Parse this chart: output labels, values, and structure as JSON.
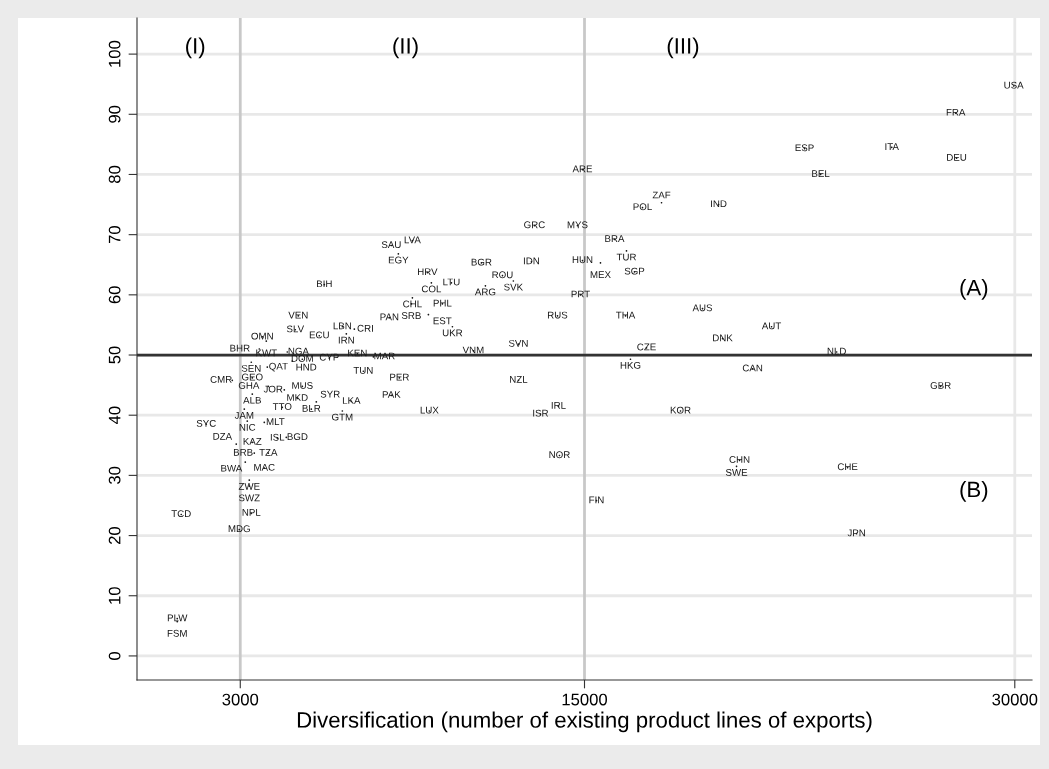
{
  "chart_data": {
    "type": "scatter",
    "xlabel": "Diversification (number of existing product lines of exports)",
    "xlim": [
      -600,
      30600
    ],
    "ylim": [
      -4,
      106
    ],
    "xticks": [
      3000,
      15000,
      30000
    ],
    "yticks": [
      0,
      10,
      20,
      30,
      40,
      50,
      60,
      70,
      80,
      90,
      100
    ],
    "grid": "y",
    "marker": "none",
    "ref_lines": [
      {
        "axis": "x",
        "value": 3000,
        "color": "#c8c8c8"
      },
      {
        "axis": "x",
        "value": 15000,
        "color": "#c8c8c8"
      },
      {
        "axis": "x",
        "value": 30000,
        "color": "#e8e8e8"
      },
      {
        "axis": "y",
        "value": 50,
        "color": "#333333"
      }
    ],
    "annotations": [
      "(I)",
      "(II)",
      "(III)",
      "(A)",
      "(B)"
    ],
    "series": [
      {
        "color": "#1a1a1a",
        "x": [
          29960,
          27940,
          22670,
          25710,
          27970,
          23230,
          23790,
          27416,
          24172,
          24486,
          14930,
          17022,
          17685,
          19673,
          13255,
          14755,
          16045,
          16464,
          14930,
          15557,
          16743,
          13150,
          12140,
          12520,
          11546,
          14860,
          14057,
          16430,
          19114,
          21520,
          19812,
          17162,
          16603,
          12697,
          20860,
          12697,
          13464,
          14092,
          18347,
          14127,
          20405,
          20300,
          15417,
          8267,
          9000,
          8511,
          5930,
          9523,
          9662,
          10360,
          11406,
          9000,
          8965,
          10046,
          9558,
          8197,
          10395,
          5023,
          4918,
          5755,
          6558,
          6697,
          6976,
          3767,
          3907,
          3663,
          4639,
          3384,
          3942,
          4814,
          5163,
          6104,
          7081,
          7639,
          7290,
          8546,
          8267,
          6872,
          6558,
          9592,
          11127,
          5163,
          4535,
          3977,
          3419,
          4465,
          5477,
          5651,
          4988,
          3419,
          2721,
          3140,
          1814,
          3244,
          3837,
          4290,
          4604,
          3977,
          3488,
          3419,
          2860,
          3837,
          3174,
          3314,
          3314,
          3384,
          2965,
          803,
          803,
          942
        ],
        "values": [
          94.7,
          90.2,
          84.3,
          84.5,
          82.7,
          80,
          50.5,
          44.8,
          31.3,
          20.3,
          80.8,
          74.5,
          75.3,
          75,
          71.5,
          71.5,
          69.2,
          67.3,
          65.7,
          65.3,
          63.8,
          65.5,
          63.2,
          62.3,
          61.5,
          60,
          56.5,
          56.5,
          57.7,
          54.7,
          52.7,
          51.2,
          49.3,
          51.8,
          47.7,
          45.8,
          40.2,
          41.5,
          40.7,
          33.3,
          32.5,
          31.5,
          25.8,
          68.2,
          69,
          66.8,
          61.7,
          63.7,
          62,
          62,
          65.3,
          59.5,
          58.5,
          58.5,
          56.7,
          56.2,
          54.7,
          56.5,
          54.2,
          53.2,
          54.7,
          53.5,
          54.3,
          53,
          52.3,
          51,
          50.5,
          48.8,
          48,
          49,
          49.3,
          49.5,
          50.2,
          49.7,
          47.3,
          46.2,
          43.3,
          42.3,
          40.7,
          40.7,
          50.7,
          44.8,
          44.2,
          44.8,
          43.5,
          41.3,
          41,
          42.2,
          42.8,
          46.2,
          45.8,
          41,
          38.5,
          39,
          38.8,
          36.2,
          36.3,
          33.7,
          33.7,
          35.5,
          35.2,
          31.2,
          32.2,
          29.2,
          28.2,
          23.7,
          21,
          6.2,
          5.7,
          23.5
        ],
        "value_labels": [
          "USA",
          "FRA",
          "ESP",
          "ITA",
          "DEU",
          "BEL",
          "NLD",
          "GBR",
          "CHE",
          "JPN",
          "ARE",
          "POL",
          "ZAF",
          "IND",
          "GRC",
          "MYS",
          "BRA",
          "TUR",
          "HUN",
          "MEX",
          "SGP",
          "IDN",
          "ROU",
          "SVK",
          "ARG",
          "PRT",
          "RUS",
          "THA",
          "AUS",
          "AUT",
          "DNK",
          "CZE",
          "HKG",
          "SVN",
          "CAN",
          "NZL",
          "ISR",
          "IRL",
          "KOR",
          "NOR",
          "CHN",
          "SWE",
          "FIN",
          "SAU",
          "LVA",
          "EGY",
          "BIH",
          "HRV",
          "COL",
          "LTU",
          "BGR",
          "CHL",
          "SRB",
          "PHL",
          "EST",
          "PAN",
          "UKR",
          "VEN",
          "SLV",
          "ECU",
          "LBN",
          "IRN",
          "CRI",
          "OMN",
          "KWT",
          "BHR",
          "NGA",
          "SEN",
          "QAT",
          "HND",
          "DOM",
          "CYP",
          "KEN",
          "MAR",
          "TUN",
          "PER",
          "PAK",
          "LKA",
          "GTM",
          "LUX",
          "VNM",
          "MUS",
          "JOR",
          "GHA",
          "ALB",
          "TTO",
          "BLR",
          "SYR",
          "MKD",
          "GEO",
          "CMR",
          "JAM",
          "SYC",
          "NIC",
          "MLT",
          "ISL",
          "BGD",
          "TZA",
          "BRB",
          "KAZ",
          "DZA",
          "MAC",
          "BWA",
          "ZWE",
          "SWZ",
          "NPL",
          "MDG",
          "PLW",
          "FSM",
          "TCD"
        ]
      }
    ]
  }
}
